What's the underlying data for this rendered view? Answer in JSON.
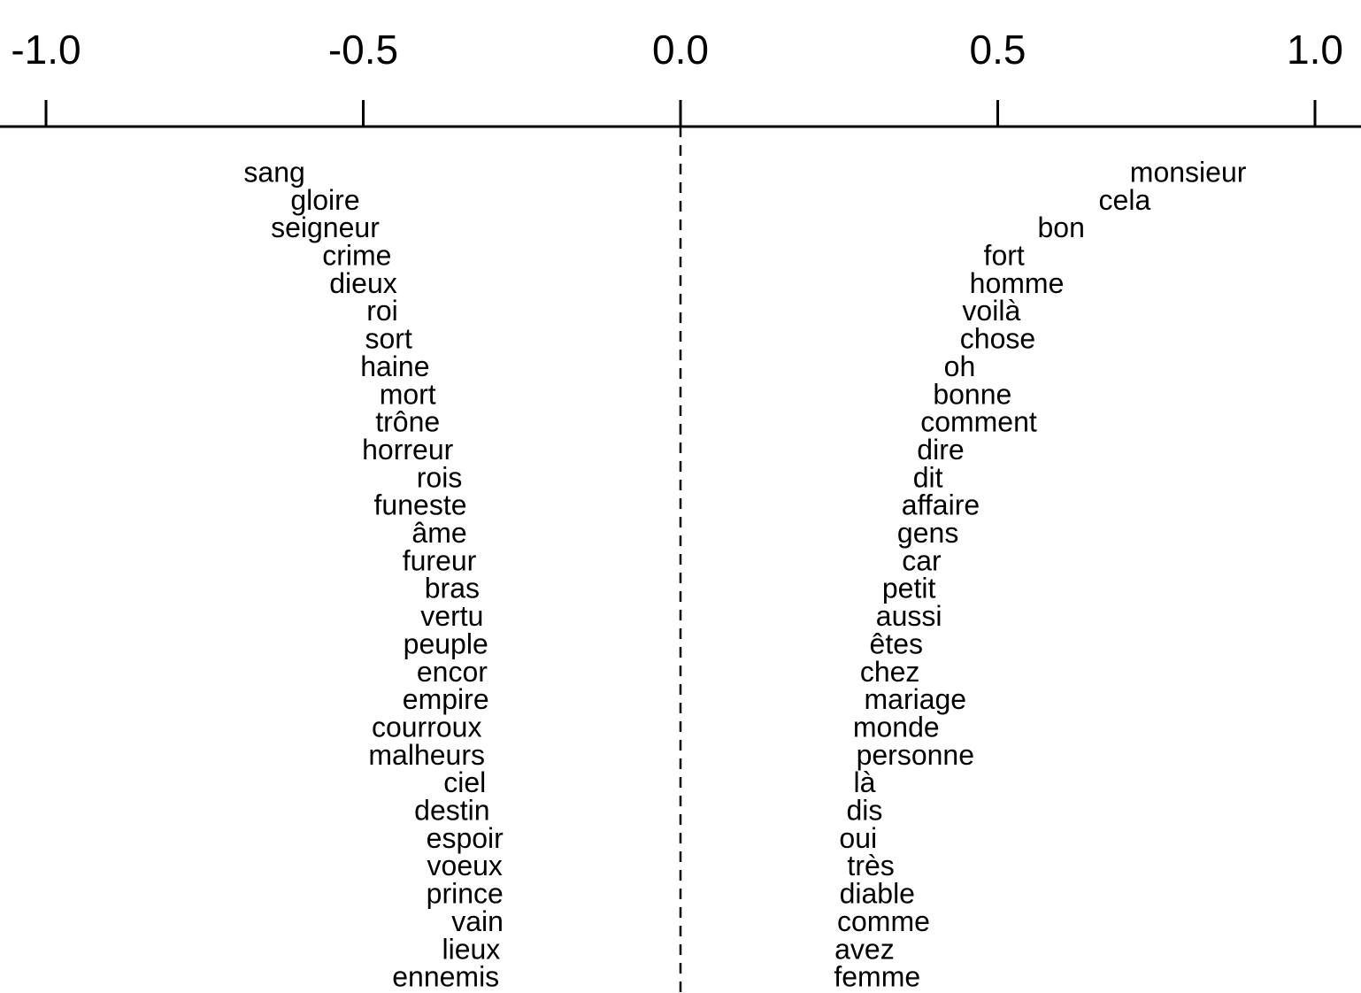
{
  "chart_data": {
    "type": "scatter",
    "title": "",
    "xlabel": "",
    "ylabel": "",
    "xlim": [
      -1.0,
      1.0
    ],
    "x_ticks": [
      -1.0,
      -0.5,
      0.0,
      0.5,
      1.0
    ],
    "x_tick_labels": [
      "-1.0",
      "-0.5",
      "0.0",
      "0.5",
      "1.0"
    ],
    "x_axis_position": "top",
    "reference_line": {
      "x": 0.0,
      "style": "dashed"
    },
    "grid": false,
    "legend": "none",
    "series": [
      {
        "values": [
          {
            "label": "sang",
            "x": -0.64
          },
          {
            "label": "gloire",
            "x": -0.56
          },
          {
            "label": "seigneur",
            "x": -0.56
          },
          {
            "label": "crime",
            "x": -0.51
          },
          {
            "label": "dieux",
            "x": -0.5
          },
          {
            "label": "roi",
            "x": -0.47
          },
          {
            "label": "sort",
            "x": -0.46
          },
          {
            "label": "haine",
            "x": -0.45
          },
          {
            "label": "mort",
            "x": -0.43
          },
          {
            "label": "trône",
            "x": -0.43
          },
          {
            "label": "horreur",
            "x": -0.43
          },
          {
            "label": "rois",
            "x": -0.38
          },
          {
            "label": "funeste",
            "x": -0.41
          },
          {
            "label": "âme",
            "x": -0.38
          },
          {
            "label": "fureur",
            "x": -0.38
          },
          {
            "label": "bras",
            "x": -0.36
          },
          {
            "label": "vertu",
            "x": -0.36
          },
          {
            "label": "peuple",
            "x": -0.37
          },
          {
            "label": "encor",
            "x": -0.36
          },
          {
            "label": "empire",
            "x": -0.37
          },
          {
            "label": "courroux",
            "x": -0.4
          },
          {
            "label": "malheurs",
            "x": -0.4
          },
          {
            "label": "ciel",
            "x": -0.34
          },
          {
            "label": "destin",
            "x": -0.36
          },
          {
            "label": "espoir",
            "x": -0.34
          },
          {
            "label": "voeux",
            "x": -0.34
          },
          {
            "label": "prince",
            "x": -0.34
          },
          {
            "label": "vain",
            "x": -0.32
          },
          {
            "label": "lieux",
            "x": -0.33
          },
          {
            "label": "ennemis",
            "x": -0.37
          },
          {
            "label": "monsieur",
            "x": 0.8
          },
          {
            "label": "cela",
            "x": 0.7
          },
          {
            "label": "bon",
            "x": 0.6
          },
          {
            "label": "fort",
            "x": 0.51
          },
          {
            "label": "homme",
            "x": 0.53
          },
          {
            "label": "voilà",
            "x": 0.49
          },
          {
            "label": "chose",
            "x": 0.5
          },
          {
            "label": "oh",
            "x": 0.44
          },
          {
            "label": "bonne",
            "x": 0.46
          },
          {
            "label": "comment",
            "x": 0.47
          },
          {
            "label": "dire",
            "x": 0.41
          },
          {
            "label": "dit",
            "x": 0.39
          },
          {
            "label": "affaire",
            "x": 0.41
          },
          {
            "label": "gens",
            "x": 0.39
          },
          {
            "label": "car",
            "x": 0.38
          },
          {
            "label": "petit",
            "x": 0.36
          },
          {
            "label": "aussi",
            "x": 0.36
          },
          {
            "label": "êtes",
            "x": 0.34
          },
          {
            "label": "chez",
            "x": 0.33
          },
          {
            "label": "mariage",
            "x": 0.37
          },
          {
            "label": "monde",
            "x": 0.34
          },
          {
            "label": "personne",
            "x": 0.37
          },
          {
            "label": "là",
            "x": 0.29
          },
          {
            "label": "dis",
            "x": 0.29
          },
          {
            "label": "oui",
            "x": 0.28
          },
          {
            "label": "très",
            "x": 0.3
          },
          {
            "label": "diable",
            "x": 0.31
          },
          {
            "label": "comme",
            "x": 0.32
          },
          {
            "label": "avez",
            "x": 0.29
          },
          {
            "label": "femme",
            "x": 0.31
          }
        ]
      }
    ]
  }
}
